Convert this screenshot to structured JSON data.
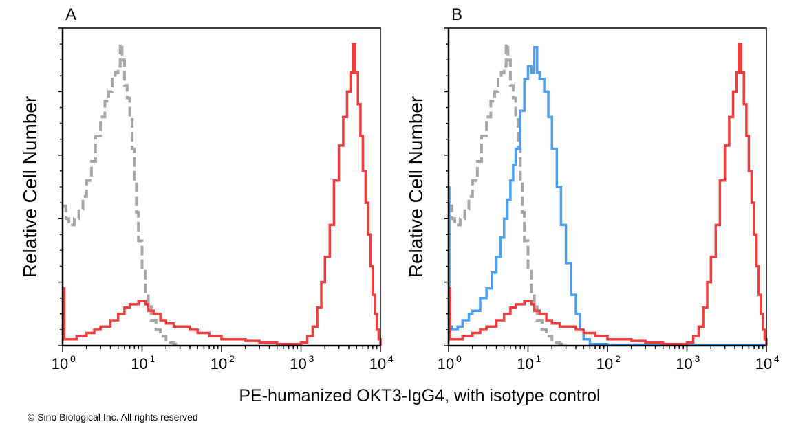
{
  "footer": {
    "copyright": "© Sino Biological Inc. All rights reserved"
  },
  "colors": {
    "isotype": "#a6a6a6",
    "stained": "#f03c3c",
    "blue": "#4a9ff0",
    "axis": "#000000"
  },
  "chart_data": [
    {
      "type": "line",
      "panel_label": "A",
      "ylabel": "Relative Cell Number",
      "xlabel": "PE-humanized OKT3-IgG4, with isotype control",
      "xscale": "log",
      "xlim": [
        1,
        10000
      ],
      "ylim": [
        0,
        100
      ],
      "x_tick_labels": [
        {
          "base": "10",
          "exp": "0"
        },
        {
          "base": "10",
          "exp": "1"
        },
        {
          "base": "10",
          "exp": "2"
        },
        {
          "base": "10",
          "exp": "3"
        },
        {
          "base": "10",
          "exp": "4"
        }
      ],
      "y_tick_labels_shown": false,
      "grid": false,
      "series": [
        {
          "color_key": "isotype",
          "dashed": true,
          "x": [
            1,
            1.1,
            1.2,
            1.4,
            1.6,
            1.8,
            2,
            2.3,
            2.6,
            3,
            3.4,
            3.8,
            4.2,
            4.6,
            5,
            5.3,
            5.6,
            6,
            6.5,
            7,
            7.5,
            8,
            8.5,
            9,
            10,
            11,
            12,
            13,
            15,
            17,
            20,
            25,
            30
          ],
          "y": [
            44,
            40,
            38,
            40,
            43,
            47,
            52,
            58,
            66,
            72,
            77,
            80,
            84,
            86,
            88,
            95,
            90,
            82,
            78,
            72,
            62,
            52,
            42,
            33,
            24,
            17,
            13,
            8,
            5,
            3,
            1,
            0.5,
            0
          ]
        },
        {
          "color_key": "stained",
          "dashed": false,
          "x": [
            1,
            1.05,
            1.2,
            1.5,
            2,
            2.5,
            3,
            4,
            5,
            6,
            7,
            8,
            9,
            10,
            11,
            12,
            14,
            17,
            20,
            25,
            30,
            40,
            50,
            70,
            100,
            150,
            200,
            300,
            500,
            700,
            1000,
            1200,
            1400,
            1600,
            1800,
            2000,
            2300,
            2600,
            3000,
            3400,
            3800,
            4200,
            4500,
            4800,
            5200,
            5600,
            6000,
            6500,
            7000,
            7500,
            8000,
            8500,
            9000,
            9500,
            10000
          ],
          "y": [
            18,
            2,
            2,
            3,
            4,
            5,
            6,
            8,
            10,
            12,
            13,
            13,
            14,
            14,
            13,
            11,
            10,
            8,
            7,
            6,
            6,
            5,
            4,
            3,
            2,
            2,
            1.5,
            1,
            0.5,
            0.5,
            1,
            3,
            6,
            12,
            20,
            28,
            38,
            52,
            63,
            72,
            80,
            86,
            95,
            86,
            76,
            66,
            55,
            45,
            35,
            25,
            16,
            10,
            5,
            2,
            0
          ]
        }
      ]
    },
    {
      "type": "line",
      "panel_label": "B",
      "ylabel": "Relative Cell Number",
      "xscale": "log",
      "xlim": [
        1,
        10000
      ],
      "ylim": [
        0,
        100
      ],
      "x_tick_labels": [
        {
          "base": "10",
          "exp": "0"
        },
        {
          "base": "10",
          "exp": "1"
        },
        {
          "base": "10",
          "exp": "2"
        },
        {
          "base": "10",
          "exp": "3"
        },
        {
          "base": "10",
          "exp": "4"
        }
      ],
      "y_tick_labels_shown": false,
      "grid": false,
      "series": [
        {
          "color_key": "isotype",
          "dashed": true,
          "x": [
            1,
            1.1,
            1.2,
            1.4,
            1.6,
            1.8,
            2,
            2.3,
            2.6,
            3,
            3.4,
            3.8,
            4.2,
            4.6,
            5,
            5.3,
            5.6,
            6,
            6.5,
            7,
            7.5,
            8,
            8.5,
            9,
            10,
            11,
            12,
            13,
            15,
            17,
            20,
            25,
            30
          ],
          "y": [
            44,
            40,
            38,
            40,
            43,
            47,
            52,
            58,
            66,
            72,
            77,
            80,
            84,
            86,
            88,
            95,
            90,
            82,
            78,
            72,
            62,
            52,
            42,
            33,
            24,
            17,
            13,
            8,
            5,
            3,
            1,
            0.5,
            0
          ]
        },
        {
          "color_key": "blue",
          "dashed": false,
          "x": [
            1,
            1.02,
            1.1,
            1.3,
            1.5,
            1.8,
            2,
            2.5,
            3,
            3.5,
            4,
            4.5,
            5,
            5.5,
            6,
            6.5,
            7,
            8,
            9,
            10,
            11,
            12,
            13,
            14,
            16,
            18,
            20,
            23,
            26,
            30,
            35,
            40,
            45,
            50,
            60,
            100,
            1000,
            10000
          ],
          "y": [
            50,
            6,
            5,
            6,
            8,
            10,
            11,
            15,
            18,
            23,
            28,
            34,
            40,
            46,
            52,
            57,
            62,
            74,
            84,
            88,
            86,
            94,
            86,
            84,
            80,
            72,
            62,
            50,
            38,
            26,
            16,
            10,
            5,
            2,
            0.5,
            0.3,
            0.3,
            0.3
          ]
        },
        {
          "color_key": "stained",
          "dashed": false,
          "x": [
            1,
            1.05,
            1.2,
            1.5,
            2,
            2.5,
            3,
            4,
            5,
            6,
            7,
            8,
            9,
            10,
            11,
            12,
            14,
            17,
            20,
            25,
            30,
            40,
            50,
            70,
            100,
            150,
            200,
            300,
            500,
            700,
            1000,
            1200,
            1400,
            1600,
            1800,
            2000,
            2300,
            2600,
            3000,
            3400,
            3800,
            4200,
            4500,
            4800,
            5200,
            5600,
            6000,
            6500,
            7000,
            7500,
            8000,
            8500,
            9000,
            9500,
            10000
          ],
          "y": [
            18,
            2,
            2,
            3,
            4,
            5,
            6,
            8,
            10,
            12,
            13,
            13,
            14,
            14,
            13,
            11,
            10,
            8,
            7,
            6,
            6,
            5,
            4,
            3,
            2,
            2,
            1.5,
            1,
            0.5,
            0.5,
            1,
            3,
            6,
            12,
            20,
            28,
            38,
            52,
            63,
            72,
            80,
            86,
            95,
            86,
            76,
            66,
            55,
            45,
            35,
            25,
            16,
            10,
            5,
            2,
            0
          ]
        }
      ]
    }
  ]
}
